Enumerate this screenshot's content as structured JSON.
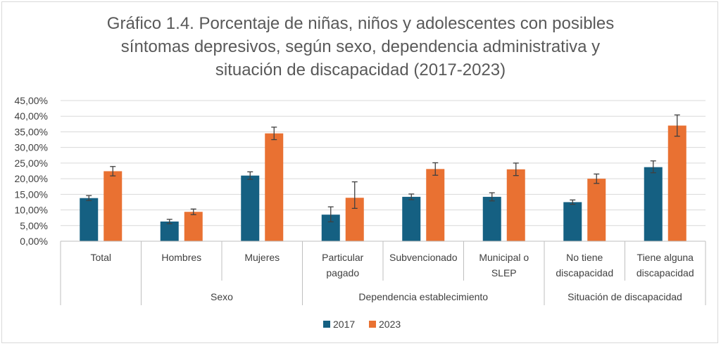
{
  "chart_data": {
    "type": "bar",
    "title_lines": [
      "Gráfico 1.4. Porcentaje de niñas, niños y adolescentes con posibles",
      "síntomas depresivos, según sexo, dependencia administrativa y",
      "situación de discapacidad (2017-2023)"
    ],
    "categories": [
      [
        "Total"
      ],
      [
        "Hombres"
      ],
      [
        "Mujeres"
      ],
      [
        "Particular",
        "pagado"
      ],
      [
        "Subvencionado"
      ],
      [
        "Municipal o",
        "SLEP"
      ],
      [
        "No tiene",
        "discapacidad"
      ],
      [
        "Tiene alguna",
        "discapacidad"
      ]
    ],
    "groups": [
      {
        "label": "",
        "start": 0,
        "end": 0
      },
      {
        "label": "Sexo",
        "start": 1,
        "end": 2
      },
      {
        "label": "Dependencia establecimiento",
        "start": 3,
        "end": 5
      },
      {
        "label": "Situación de discapacidad",
        "start": 6,
        "end": 7
      }
    ],
    "series": [
      {
        "name": "2017",
        "color": "#156082",
        "values": [
          13.8,
          6.3,
          21.0,
          8.5,
          14.2,
          14.2,
          12.5,
          23.7
        ],
        "err_low": [
          0.8,
          0.7,
          1.2,
          2.3,
          0.9,
          1.3,
          0.7,
          1.8
        ],
        "err_high": [
          0.8,
          0.7,
          1.2,
          2.5,
          0.9,
          1.3,
          0.7,
          2.0
        ]
      },
      {
        "name": "2023",
        "color": "#E97132",
        "values": [
          22.4,
          9.4,
          34.5,
          13.9,
          23.1,
          23.0,
          20.0,
          37.0
        ],
        "err_low": [
          1.5,
          0.9,
          2.0,
          3.4,
          2.0,
          2.0,
          1.5,
          3.4
        ],
        "err_high": [
          1.5,
          0.9,
          2.0,
          5.1,
          2.0,
          2.0,
          1.5,
          3.4
        ]
      }
    ],
    "yticks": [
      "0,00%",
      "5,00%",
      "10,00%",
      "15,00%",
      "20,00%",
      "25,00%",
      "30,00%",
      "35,00%",
      "40,00%",
      "45,00%"
    ],
    "ylim": [
      0,
      45
    ],
    "grid": true,
    "error_bars": true,
    "legend_position": "bottom",
    "xlabel": "",
    "ylabel": ""
  }
}
